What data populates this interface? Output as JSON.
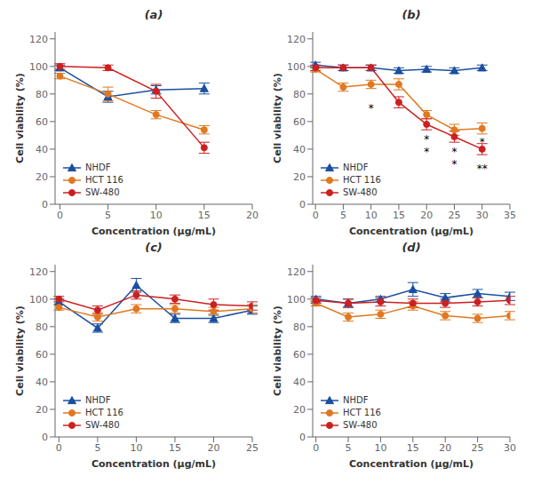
{
  "chart_data": [
    {
      "type": "line",
      "title": "(a)",
      "x_label": "Concentration (μg/mL)",
      "y_label": "Cell viability (%)",
      "x": [
        0,
        5,
        10,
        15
      ],
      "xlim": [
        -0.5,
        20
      ],
      "xticks": [
        0,
        5,
        10,
        15,
        20
      ],
      "ylim": [
        0,
        125
      ],
      "yticks": [
        0,
        20,
        40,
        60,
        80,
        100,
        120
      ],
      "grid": false,
      "legend": "lower left",
      "series": [
        {
          "name": "NHDF",
          "color": "#1a4fa0",
          "marker": "triangle",
          "values": [
            99,
            78,
            83,
            84
          ],
          "errors": [
            2,
            4,
            3,
            4
          ]
        },
        {
          "name": "HCT 116",
          "color": "#e07820",
          "marker": "circle",
          "values": [
            93,
            80,
            65,
            54
          ],
          "errors": [
            2,
            5,
            3,
            3
          ]
        },
        {
          "name": "SW-480",
          "color": "#cc2020",
          "marker": "circle",
          "values": [
            100,
            99,
            82,
            41
          ],
          "errors": [
            2,
            2,
            5,
            4
          ]
        }
      ],
      "annotations": []
    },
    {
      "type": "line",
      "title": "(b)",
      "x_label": "Concentration (μg/mL)",
      "y_label": "Cell viability (%)",
      "x": [
        0,
        5,
        10,
        15,
        20,
        25,
        30
      ],
      "xlim": [
        -0.5,
        35
      ],
      "xticks": [
        0,
        5,
        10,
        15,
        20,
        25,
        30,
        35
      ],
      "ylim": [
        0,
        125
      ],
      "yticks": [
        0,
        20,
        40,
        60,
        80,
        100,
        120
      ],
      "grid": false,
      "legend": "lower left",
      "series": [
        {
          "name": "NHDF",
          "color": "#1a4fa0",
          "marker": "triangle",
          "values": [
            101,
            99,
            99,
            97,
            98,
            97,
            99
          ],
          "errors": [
            2,
            2,
            2,
            2,
            2,
            2,
            2
          ]
        },
        {
          "name": "HCT 116",
          "color": "#e07820",
          "marker": "circle",
          "values": [
            98,
            85,
            87,
            87,
            65,
            54,
            55
          ],
          "errors": [
            2,
            3,
            3,
            4,
            3,
            4,
            4
          ]
        },
        {
          "name": "SW-480",
          "color": "#cc2020",
          "marker": "circle",
          "values": [
            99,
            99,
            99,
            74,
            58,
            49,
            40
          ],
          "errors": [
            2,
            2,
            2,
            4,
            4,
            4,
            4
          ]
        }
      ],
      "annotations": [
        {
          "x": 10,
          "y": 70,
          "text": "*"
        },
        {
          "x": 20,
          "y": 47,
          "text": "*"
        },
        {
          "x": 20,
          "y": 38,
          "text": "*"
        },
        {
          "x": 25,
          "y": 38,
          "text": "*"
        },
        {
          "x": 25,
          "y": 29,
          "text": "*"
        },
        {
          "x": 30,
          "y": 45,
          "text": "*"
        },
        {
          "x": 30,
          "y": 26,
          "text": "**"
        }
      ]
    },
    {
      "type": "line",
      "title": "(c)",
      "x_label": "Concentration (μg/mL)",
      "y_label": "Cell viability (%)",
      "x": [
        0,
        5,
        10,
        15,
        20,
        25
      ],
      "xlim": [
        -0.5,
        25
      ],
      "xticks": [
        0,
        5,
        10,
        15,
        20,
        25
      ],
      "ylim": [
        0,
        125
      ],
      "yticks": [
        0,
        20,
        40,
        60,
        80,
        100,
        120
      ],
      "grid": false,
      "legend": "lower left",
      "series": [
        {
          "name": "NHDF",
          "color": "#1a4fa0",
          "marker": "triangle",
          "values": [
            98,
            79,
            110,
            86,
            86,
            92
          ],
          "errors": [
            2,
            3,
            5,
            3,
            3,
            3
          ]
        },
        {
          "name": "HCT 116",
          "color": "#e07820",
          "marker": "circle",
          "values": [
            94,
            87,
            93,
            93,
            91,
            93
          ],
          "errors": [
            2,
            3,
            3,
            3,
            3,
            3
          ]
        },
        {
          "name": "SW-480",
          "color": "#cc2020",
          "marker": "circle",
          "values": [
            100,
            92,
            103,
            100,
            96,
            95
          ],
          "errors": [
            2,
            3,
            3,
            3,
            4,
            3
          ]
        }
      ],
      "annotations": []
    },
    {
      "type": "line",
      "title": "(d)",
      "x_label": "Concentration (μg/mL)",
      "y_label": "Cell viability (%)",
      "x": [
        0,
        5,
        10,
        15,
        20,
        25,
        30
      ],
      "xlim": [
        -0.5,
        30
      ],
      "xticks": [
        0,
        5,
        10,
        15,
        20,
        25,
        30
      ],
      "ylim": [
        0,
        125
      ],
      "yticks": [
        0,
        20,
        40,
        60,
        80,
        100,
        120
      ],
      "grid": false,
      "legend": "lower left",
      "series": [
        {
          "name": "NHDF",
          "color": "#1a4fa0",
          "marker": "triangle",
          "values": [
            100,
            97,
            100,
            107,
            101,
            104,
            102
          ],
          "errors": [
            2,
            3,
            2,
            5,
            3,
            3,
            3
          ]
        },
        {
          "name": "HCT 116",
          "color": "#e07820",
          "marker": "circle",
          "values": [
            97,
            87,
            89,
            95,
            88,
            86,
            88
          ],
          "errors": [
            2,
            3,
            3,
            3,
            3,
            3,
            3
          ]
        },
        {
          "name": "SW-480",
          "color": "#cc2020",
          "marker": "circle",
          "values": [
            99,
            97,
            98,
            97,
            97,
            98,
            99
          ],
          "errors": [
            2,
            3,
            3,
            3,
            3,
            3,
            3
          ]
        }
      ],
      "annotations": []
    }
  ]
}
